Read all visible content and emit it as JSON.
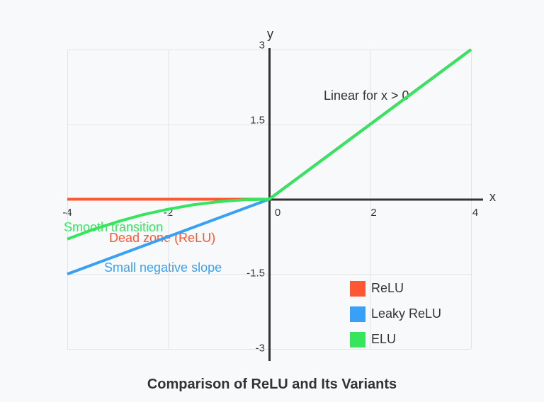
{
  "page": {
    "background": "#f8f9fa",
    "grid_color": "#e2e4e6",
    "axis_color": "#333333"
  },
  "chart_data": {
    "type": "line",
    "title": "Comparison of ReLU and Its Variants",
    "xlabel": "x",
    "ylabel": "y",
    "xlim": [
      -4,
      4
    ],
    "ylim": [
      -3,
      3
    ],
    "x_ticks": [
      -4,
      -2,
      0,
      2,
      4
    ],
    "y_ticks": [
      3,
      1.5,
      -1.5,
      -3
    ],
    "grid": true,
    "legend_position": "inside bottom-right",
    "series": [
      {
        "name": "ReLU",
        "color": "#ff5733",
        "points": [
          [
            -4,
            0
          ],
          [
            0,
            0
          ],
          [
            4,
            3
          ]
        ]
      },
      {
        "name": "Leaky ReLU",
        "color": "#38a1f7",
        "points": [
          [
            -4,
            -1.5
          ],
          [
            0,
            0
          ],
          [
            4,
            3
          ]
        ]
      },
      {
        "name": "ELU",
        "color": "#35e55c",
        "points": [
          [
            -4,
            -0.8
          ],
          [
            -3.5,
            -0.61
          ],
          [
            -3,
            -0.45
          ],
          [
            -2.5,
            -0.31
          ],
          [
            -2,
            -0.2
          ],
          [
            -1.5,
            -0.11
          ],
          [
            -1,
            -0.05
          ],
          [
            -0.5,
            -0.01
          ],
          [
            0,
            0
          ],
          [
            4,
            3
          ]
        ]
      }
    ],
    "annotations": [
      {
        "text": "Linear for x > 0",
        "color": "#333333"
      },
      {
        "text": "Smooth transition",
        "color": "#35e55c"
      },
      {
        "text": "Dead zone (ReLU)",
        "color": "#ff5733"
      },
      {
        "text": "Small negative slope",
        "color": "#38a1f7"
      }
    ]
  }
}
